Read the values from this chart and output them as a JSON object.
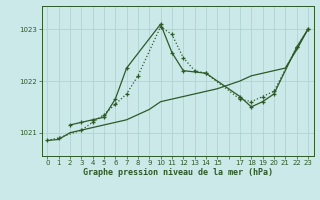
{
  "background_color": "#cbe9e9",
  "grid_color": "#aacfcf",
  "line_color": "#2d5a27",
  "title": "Graphe pression niveau de la mer (hPa)",
  "xlim": [
    -0.5,
    23.5
  ],
  "ylim": [
    1020.55,
    1023.45
  ],
  "yticks": [
    1021,
    1022,
    1023
  ],
  "xtick_labels": [
    "0",
    "1",
    "2",
    "3",
    "4",
    "5",
    "6",
    "7",
    "8",
    "9",
    "10",
    "11",
    "12",
    "13",
    "14",
    "15",
    "",
    "17",
    "18",
    "19",
    "20",
    "21",
    "22",
    "23"
  ],
  "xtick_positions": [
    0,
    1,
    2,
    3,
    4,
    5,
    6,
    7,
    8,
    9,
    10,
    11,
    12,
    13,
    14,
    15,
    16,
    17,
    18,
    19,
    20,
    21,
    22,
    23
  ],
  "series": [
    {
      "x": [
        0,
        1,
        2,
        3,
        4,
        5,
        6,
        7,
        8,
        9,
        10,
        11,
        12,
        13,
        14,
        15,
        17,
        18,
        19,
        20,
        21,
        22,
        23
      ],
      "y": [
        1020.85,
        1020.87,
        1021.0,
        1021.05,
        1021.1,
        1021.15,
        1021.2,
        1021.25,
        1021.35,
        1021.45,
        1021.6,
        1021.65,
        1021.7,
        1021.75,
        1021.8,
        1021.85,
        1022.0,
        1022.1,
        1022.15,
        1022.2,
        1022.25,
        1022.6,
        1023.0
      ],
      "style": "solid",
      "marker": null,
      "lw": 0.9
    },
    {
      "x": [
        0,
        1,
        3,
        4,
        5,
        6,
        7,
        8,
        10,
        11,
        12,
        13,
        14,
        17,
        18,
        19,
        20,
        22,
        23
      ],
      "y": [
        1020.85,
        1020.9,
        1021.05,
        1021.2,
        1021.35,
        1021.55,
        1021.75,
        1022.1,
        1023.05,
        1022.9,
        1022.45,
        1022.2,
        1022.15,
        1021.65,
        1021.6,
        1021.7,
        1021.8,
        1022.65,
        1023.0
      ],
      "style": "dotted",
      "marker": "+",
      "lw": 0.9
    },
    {
      "x": [
        2,
        3,
        4,
        5,
        6,
        7,
        10,
        11,
        12,
        14,
        17,
        18,
        19,
        20,
        22,
        23
      ],
      "y": [
        1021.15,
        1021.2,
        1021.25,
        1021.3,
        1021.65,
        1022.25,
        1023.1,
        1022.55,
        1022.2,
        1022.15,
        1021.7,
        1021.5,
        1021.6,
        1021.75,
        1022.65,
        1023.0
      ],
      "style": "solid",
      "marker": "+",
      "lw": 0.9
    }
  ]
}
